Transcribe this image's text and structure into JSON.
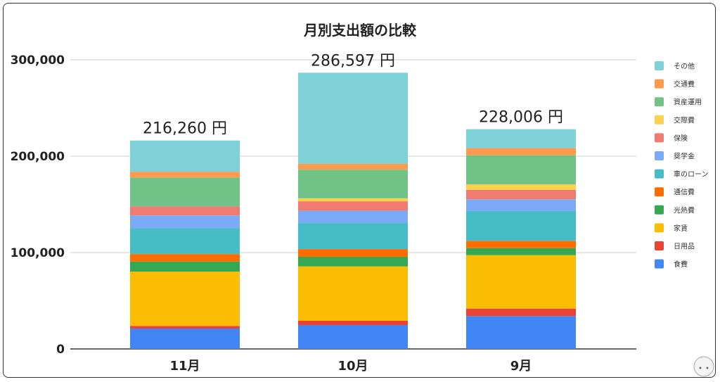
{
  "chart_data": {
    "type": "bar",
    "stacked": true,
    "title": "月別支出額の比較",
    "xlabel": "",
    "ylabel": "",
    "ylim": [
      0,
      300000
    ],
    "yticks": [
      0,
      100000,
      200000,
      300000
    ],
    "ytick_labels": [
      "0",
      "100,000",
      "200,000",
      "300,000"
    ],
    "grid": true,
    "legend_position": "right",
    "categories": [
      "11月",
      "10月",
      "9月"
    ],
    "totals": [
      216260,
      286597,
      228006
    ],
    "total_labels": [
      "216,260 円",
      "286,597 円",
      "228,006 円"
    ],
    "series": [
      {
        "name": "食費",
        "color": "#4285f4",
        "values": [
          21170,
          24800,
          34100
        ]
      },
      {
        "name": "日用品",
        "color": "#ea4335",
        "values": [
          2700,
          4400,
          7700
        ]
      },
      {
        "name": "家賃",
        "color": "#fbbc04",
        "values": [
          56400,
          56400,
          55500
        ]
      },
      {
        "name": "光熱費",
        "color": "#34a853",
        "values": [
          10400,
          10000,
          7300
        ]
      },
      {
        "name": "通信費",
        "color": "#ff6d01",
        "values": [
          7800,
          8000,
          7600
        ]
      },
      {
        "name": "車のローン",
        "color": "#46bdc6",
        "values": [
          27000,
          27000,
          30900
        ]
      },
      {
        "name": "奨学金",
        "color": "#7baaf7",
        "values": [
          13100,
          12900,
          12200
        ]
      },
      {
        "name": "保険",
        "color": "#f07b72",
        "values": [
          9300,
          9700,
          9700
        ]
      },
      {
        "name": "交際費",
        "color": "#fcd04f",
        "values": [
          0,
          3100,
          5800
        ]
      },
      {
        "name": "資産運用",
        "color": "#71c287",
        "values": [
          30000,
          29700,
          30200
        ]
      },
      {
        "name": "交通費",
        "color": "#ff994d",
        "values": [
          6000,
          6000,
          7300
        ]
      },
      {
        "name": "その他",
        "color": "#7ed1d7",
        "values": [
          32390,
          94597,
          19706
        ]
      }
    ]
  }
}
